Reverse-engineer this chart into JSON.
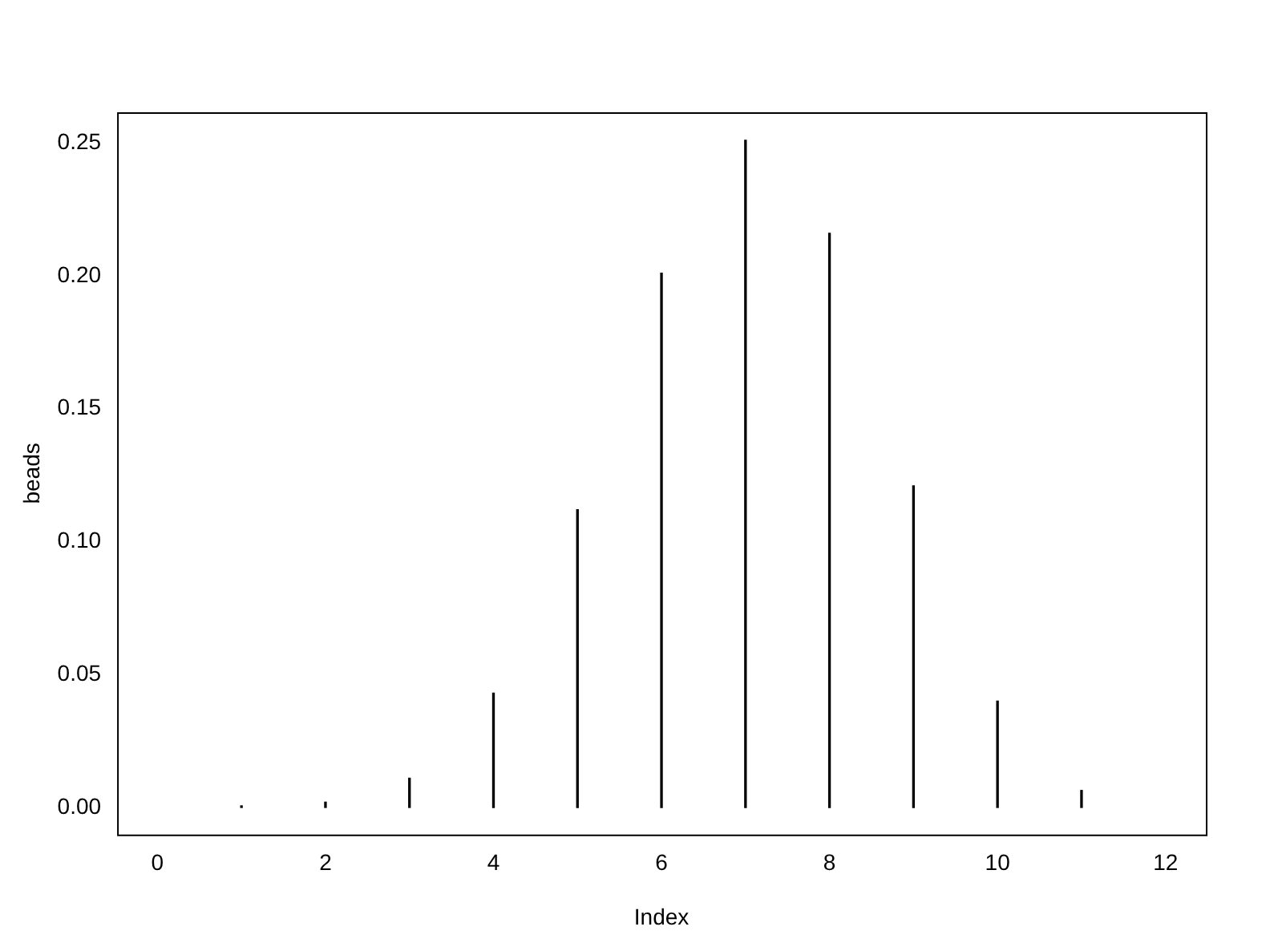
{
  "chart_data": {
    "type": "bar",
    "xlabel": "Index",
    "ylabel": "beads",
    "x": [
      1,
      2,
      3,
      4,
      5,
      6,
      7,
      8,
      9,
      10,
      11
    ],
    "values": [
      0.0006,
      0.002,
      0.011,
      0.043,
      0.112,
      0.201,
      0.251,
      0.216,
      0.121,
      0.04,
      0.0064
    ],
    "color": "#000000",
    "xlim": [
      -0.48,
      12.48
    ],
    "xticks": [
      0,
      2,
      4,
      6,
      8,
      10,
      12
    ],
    "ylim": [
      -0.0102,
      0.2615
    ],
    "yticks": [
      {
        "value": 0,
        "label": "0.00"
      },
      {
        "value": 0.05,
        "label": "0.05"
      },
      {
        "value": 0.1,
        "label": "0.10"
      },
      {
        "value": 0.15,
        "label": "0.15"
      },
      {
        "value": 0.2,
        "label": "0.20"
      },
      {
        "value": 0.25,
        "label": "0.25"
      }
    ],
    "grid": false,
    "legend": false
  }
}
